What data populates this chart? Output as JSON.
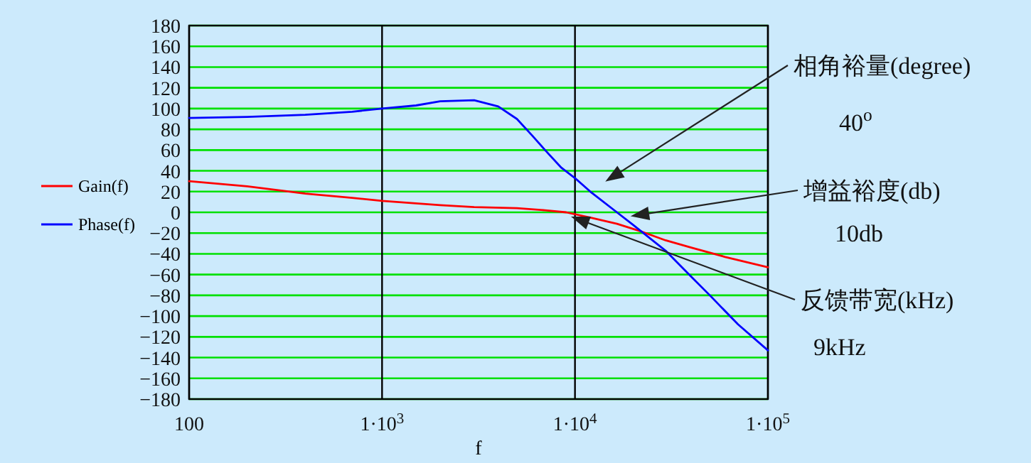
{
  "chart_data": {
    "type": "line",
    "xlabel": "f",
    "log": "x",
    "grid": true,
    "legend": "left",
    "x": [
      100,
      200,
      400,
      700,
      1000,
      1500,
      2000,
      3000,
      4000,
      5000,
      6000,
      7000,
      8500,
      10000,
      12000,
      16500,
      20000,
      29500,
      40000,
      50000,
      70000,
      100000
    ],
    "series": [
      {
        "name": "Gain(f)",
        "color": "#ff0000",
        "x": [
          100,
          200,
          400,
          700,
          1000,
          2000,
          3000,
          5000,
          7000,
          9000,
          12000,
          16500,
          21700,
          29500,
          40000,
          60000,
          100000
        ],
        "values": [
          30,
          25,
          18,
          14,
          11,
          7,
          5,
          4,
          2,
          0,
          -5,
          -11,
          -18,
          -27,
          -34,
          -43,
          -53
        ]
      },
      {
        "name": "Phase(f)",
        "color": "#0000ff",
        "values": [
          91,
          92,
          94,
          97,
          100,
          103,
          107,
          108,
          102,
          90,
          74,
          60,
          43,
          33,
          20,
          0,
          -12,
          -37,
          -62,
          -80,
          -108,
          -133
        ]
      }
    ],
    "xlim": [
      100,
      100000
    ],
    "xticks": [
      100,
      {
        "value": 1000,
        "label": "1·10$^{3}$"
      },
      {
        "value": 10000,
        "label": "1·10$^{4}$"
      },
      {
        "value": 100000,
        "label": "1·10$^{5}$"
      }
    ],
    "ylim": [
      -180,
      180
    ],
    "yticks": [
      -180,
      -160,
      -140,
      -120,
      -100,
      -80,
      -60,
      -40,
      -20,
      0,
      20,
      40,
      60,
      80,
      100,
      120,
      140,
      160,
      180
    ],
    "annotations": [
      "相角裕量(degree)",
      "40$^{o}$",
      "增益裕度(db)",
      "10db",
      "反馈带宽(kHz)",
      "9kHz"
    ]
  }
}
